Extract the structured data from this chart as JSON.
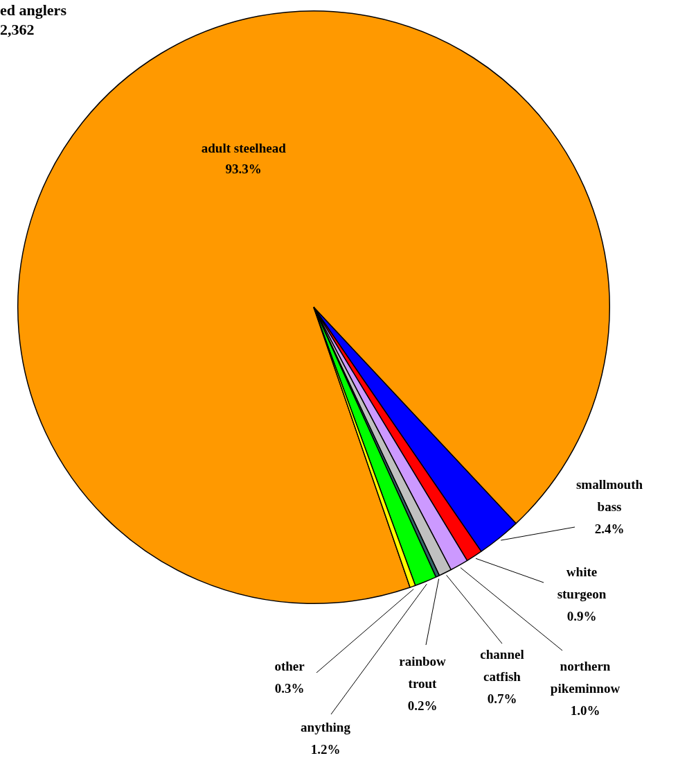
{
  "chart_data": {
    "type": "pie",
    "title": "ed anglers",
    "subtitle": "2,362",
    "categories": [
      "adult steelhead",
      "smallmouth bass",
      "white sturgeon",
      "northern pikeminnow",
      "channel catfish",
      "rainbow trout",
      "anything",
      "other"
    ],
    "values": [
      93.3,
      2.4,
      0.9,
      1.0,
      0.7,
      0.2,
      1.2,
      0.3
    ],
    "value_labels": [
      "93.3%",
      "2.4%",
      "0.9%",
      "1.0%",
      "0.7%",
      "0.2%",
      "1.2%",
      "0.3%"
    ],
    "colors": [
      "#ff9900",
      "#0000ff",
      "#ff0000",
      "#cc99ff",
      "#c0c0c0",
      "#336666",
      "#00ff00",
      "#ffff00"
    ]
  }
}
